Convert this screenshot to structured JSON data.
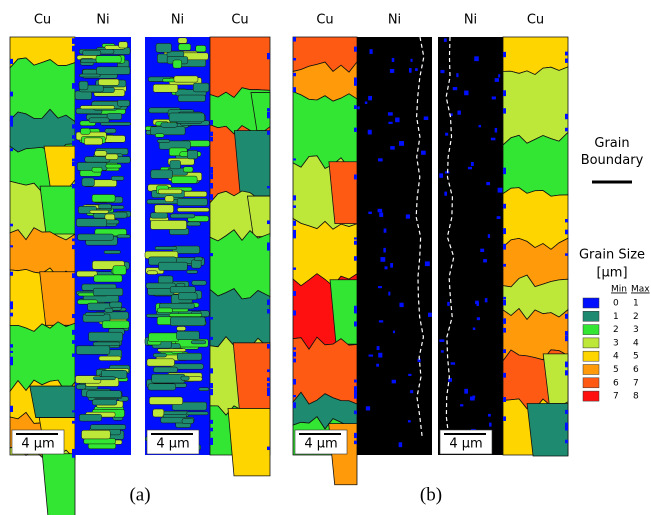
{
  "panels": [
    {
      "labels": [
        "Cu",
        "Ni"
      ],
      "scale_bar": "4 µm"
    },
    {
      "labels": [
        "Ni",
        "Cu"
      ],
      "scale_bar": "4 µm"
    },
    {
      "labels": [
        "Cu",
        "Ni"
      ],
      "scale_bar": "4 µm"
    },
    {
      "labels": [
        "Ni",
        "Cu"
      ],
      "scale_bar": "4 µm"
    }
  ],
  "captions": [
    "(a)",
    "(b)"
  ],
  "boundary_legend": {
    "title": "Grain Boundary"
  },
  "size_legend": {
    "title": "Grain Size",
    "unit": "[µm]",
    "min_header": "Min",
    "max_header": "Max",
    "rows": [
      {
        "min": 0,
        "max": 1,
        "color": "#0010ff"
      },
      {
        "min": 1,
        "max": 2,
        "color": "#1e8a70"
      },
      {
        "min": 2,
        "max": 3,
        "color": "#33e633"
      },
      {
        "min": 3,
        "max": 4,
        "color": "#bde83a"
      },
      {
        "min": 4,
        "max": 5,
        "color": "#ffd500"
      },
      {
        "min": 5,
        "max": 6,
        "color": "#ff9a0a"
      },
      {
        "min": 6,
        "max": 7,
        "color": "#ff5a14"
      },
      {
        "min": 7,
        "max": 8,
        "color": "#ff1010"
      }
    ]
  }
}
